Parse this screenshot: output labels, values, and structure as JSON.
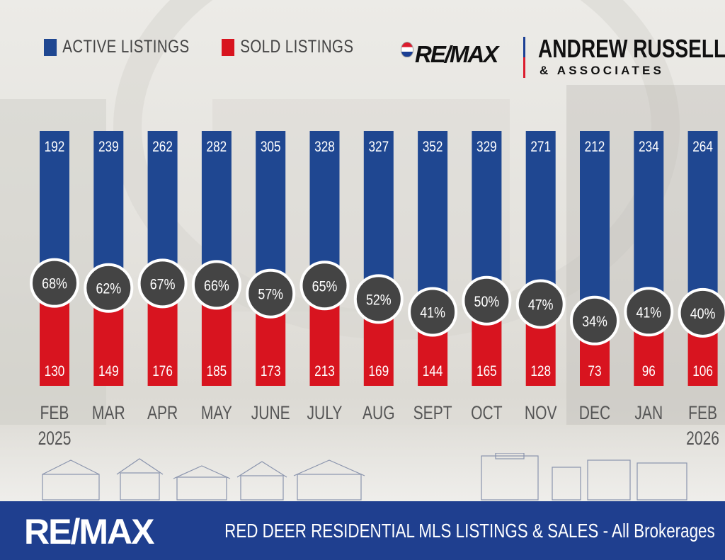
{
  "legend": {
    "active_label": "ACTIVE LISTINGS",
    "sold_label": "SOLD LISTINGS"
  },
  "brand": {
    "remax_label": "RE/MAX",
    "agent_name": "ANDREW RUSSELL",
    "agent_sub": "& ASSOCIATES"
  },
  "footer": {
    "logo": "RE/MAX",
    "title": "RED DEER RESIDENTIAL MLS LISTINGS & SALES - All Brokerages"
  },
  "colors": {
    "active": "#1f4791",
    "sold": "#d8141f",
    "badge": "#444444",
    "footer": "#1f3f8f"
  },
  "chart_data": {
    "type": "bar",
    "stacked": true,
    "title": "RED DEER RESIDENTIAL MLS LISTINGS & SALES - All Brokerages",
    "categories": [
      [
        "FEB",
        "2025"
      ],
      [
        "MAR"
      ],
      [
        "APR"
      ],
      [
        "MAY"
      ],
      [
        "JUNE"
      ],
      [
        "JULY"
      ],
      [
        "AUG"
      ],
      [
        "SEPT"
      ],
      [
        "OCT"
      ],
      [
        "NOV"
      ],
      [
        "DEC"
      ],
      [
        "JAN"
      ],
      [
        "FEB",
        "2026"
      ]
    ],
    "series": [
      {
        "name": "ACTIVE LISTINGS",
        "values": [
          192,
          239,
          262,
          282,
          305,
          328,
          327,
          352,
          329,
          271,
          212,
          234,
          264
        ]
      },
      {
        "name": "SOLD LISTINGS",
        "values": [
          130,
          149,
          176,
          185,
          173,
          213,
          169,
          144,
          165,
          128,
          73,
          96,
          106
        ]
      }
    ],
    "sales_to_listings_ratio": [
      "68%",
      "62%",
      "67%",
      "66%",
      "57%",
      "65%",
      "52%",
      "41%",
      "50%",
      "47%",
      "34%",
      "41%",
      "40%"
    ],
    "legend_position": "top-left"
  }
}
